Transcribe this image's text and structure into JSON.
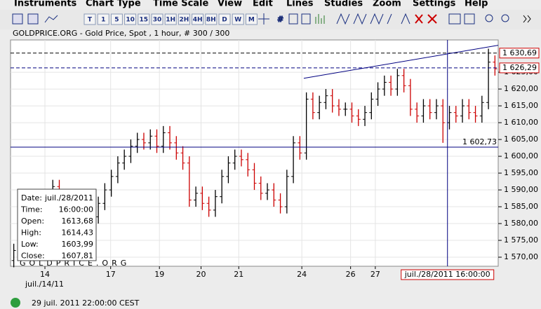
{
  "menu": [
    "Instruments",
    "Chart Type",
    "Time Scale",
    "View",
    "Edit",
    "Lines",
    "Studies",
    "Zoom",
    "Settings",
    "Help"
  ],
  "toolbar": {
    "timeframes": [
      "T",
      "1",
      "5",
      "10",
      "15",
      "30",
      "1H",
      "2H",
      "4H",
      "8H",
      "D",
      "W",
      "M"
    ]
  },
  "chart_data": {
    "type": "ohlc",
    "title": "GOLDPRICE.ORG - Gold Price, Spot , 1 hour, # 300 / 300",
    "watermark": "GOLDPRICE.ORG",
    "up_color": "#000000",
    "down_color": "#cc0000",
    "grid": true,
    "xlim": [
      0,
      75
    ],
    "ylim": [
      1567.3,
      1634.6
    ],
    "xticks": [
      {
        "value": 5.29,
        "label": "14"
      },
      {
        "value": 15.4,
        "label": "17"
      },
      {
        "value": 22.9,
        "label": "19"
      },
      {
        "value": 29.3,
        "label": "20"
      },
      {
        "value": 35.1,
        "label": "21"
      },
      {
        "value": 44.8,
        "label": "24"
      },
      {
        "value": 52.3,
        "label": "26"
      },
      {
        "value": 56.1,
        "label": "27"
      }
    ],
    "x_sublabel": "juil./14/11",
    "yticks": [
      {
        "value": 1570,
        "label": "1 570,00"
      },
      {
        "value": 1575,
        "label": "1 575,00"
      },
      {
        "value": 1580,
        "label": "1 580,00"
      },
      {
        "value": 1585,
        "label": "1 585,00"
      },
      {
        "value": 1590,
        "label": "1 590,00"
      },
      {
        "value": 1595,
        "label": "1 595,00"
      },
      {
        "value": 1600,
        "label": "1 600,00"
      },
      {
        "value": 1605,
        "label": "1 605,00"
      },
      {
        "value": 1610,
        "label": "1 610,00"
      },
      {
        "value": 1615,
        "label": "1 615,00"
      },
      {
        "value": 1620,
        "label": "1 620,00"
      },
      {
        "value": 1625,
        "label": "1 625,00"
      }
    ],
    "open": [
      1569,
      1572,
      1576,
      1582,
      1586,
      1588,
      1585,
      1591,
      1587,
      1583,
      1585,
      1588,
      1584,
      1582,
      1586,
      1590,
      1594,
      1598,
      1600,
      1603,
      1605,
      1604,
      1606,
      1603,
      1607,
      1604,
      1601,
      1598,
      1587,
      1589,
      1586,
      1584,
      1588,
      1594,
      1598,
      1600,
      1599,
      1596,
      1592,
      1589,
      1590,
      1587,
      1585,
      1594,
      1604,
      1601,
      1617,
      1613,
      1616,
      1618,
      1615,
      1614,
      1614,
      1612,
      1611,
      1613,
      1617,
      1620,
      1622,
      1620,
      1624,
      1621,
      1614,
      1612,
      1615,
      1613,
      1615,
      1610,
      1613,
      1612,
      1615,
      1613,
      1612,
      1616,
      1628
    ],
    "high": [
      1574,
      1578,
      1584,
      1588,
      1590,
      1590,
      1593,
      1593,
      1589,
      1587,
      1590,
      1590,
      1586,
      1588,
      1592,
      1596,
      1600,
      1602,
      1605,
      1607,
      1607,
      1608,
      1608,
      1609,
      1609,
      1606,
      1603,
      1600,
      1591,
      1591,
      1588,
      1590,
      1596,
      1600,
      1602,
      1602,
      1601,
      1598,
      1594,
      1592,
      1592,
      1589,
      1596,
      1606,
      1606,
      1619,
      1619,
      1618,
      1620,
      1620,
      1617,
      1616,
      1616,
      1614,
      1615,
      1619,
      1622,
      1624,
      1624,
      1626,
      1626,
      1623,
      1616,
      1617,
      1617,
      1617,
      1617,
      1615,
      1615,
      1617,
      1617,
      1615,
      1618,
      1632,
      1630
    ],
    "low": [
      1567,
      1570,
      1574,
      1580,
      1584,
      1583,
      1583,
      1585,
      1581,
      1581,
      1583,
      1582,
      1580,
      1580,
      1584,
      1588,
      1592,
      1596,
      1598,
      1601,
      1602,
      1602,
      1601,
      1601,
      1602,
      1599,
      1596,
      1585,
      1585,
      1584,
      1582,
      1582,
      1586,
      1592,
      1596,
      1597,
      1594,
      1590,
      1587,
      1587,
      1585,
      1583,
      1583,
      1592,
      1599,
      1599,
      1611,
      1611,
      1614,
      1613,
      1612,
      1612,
      1610,
      1609,
      1609,
      1611,
      1615,
      1618,
      1618,
      1618,
      1619,
      1612,
      1610,
      1610,
      1611,
      1611,
      1604,
      1608,
      1610,
      1610,
      1611,
      1610,
      1610,
      1614,
      1624
    ],
    "close": [
      1572,
      1576,
      1582,
      1586,
      1588,
      1585,
      1591,
      1587,
      1583,
      1585,
      1588,
      1584,
      1582,
      1586,
      1590,
      1594,
      1598,
      1600,
      1603,
      1605,
      1604,
      1606,
      1603,
      1607,
      1604,
      1601,
      1598,
      1587,
      1589,
      1586,
      1584,
      1588,
      1594,
      1598,
      1600,
      1599,
      1596,
      1592,
      1589,
      1590,
      1587,
      1585,
      1594,
      1604,
      1601,
      1617,
      1613,
      1616,
      1618,
      1615,
      1614,
      1614,
      1612,
      1611,
      1613,
      1617,
      1620,
      1622,
      1620,
      1624,
      1621,
      1614,
      1612,
      1615,
      1613,
      1615,
      1610,
      1613,
      1612,
      1615,
      1613,
      1612,
      1616,
      1628,
      1626
    ],
    "levels": [
      {
        "value": 1630.69,
        "label": "1 630,69",
        "style": "dashed",
        "color": "#000000"
      },
      {
        "value": 1626.29,
        "label": "1 626,29",
        "style": "dashed",
        "color": "#000080"
      },
      {
        "value": 1602.73,
        "label": "1 602,73",
        "style": "solid",
        "color": "#000080"
      }
    ],
    "cursor": {
      "x": 67.2,
      "label": "juil./28/2011 16:00:00"
    },
    "trendline": {
      "x": [
        45.1,
        75
      ],
      "y": [
        1623.2,
        1633
      ]
    }
  },
  "info_box": [
    [
      "Date:",
      "juil./28/2011"
    ],
    [
      "Time:",
      "16:00:00"
    ],
    [
      "Open:",
      "1613,68"
    ],
    [
      "High:",
      "1614,43"
    ],
    [
      "Low:",
      "1603,99"
    ],
    [
      "Close:",
      "1607,81"
    ]
  ],
  "status": "29 juil. 2011 22:00:00 CEST"
}
